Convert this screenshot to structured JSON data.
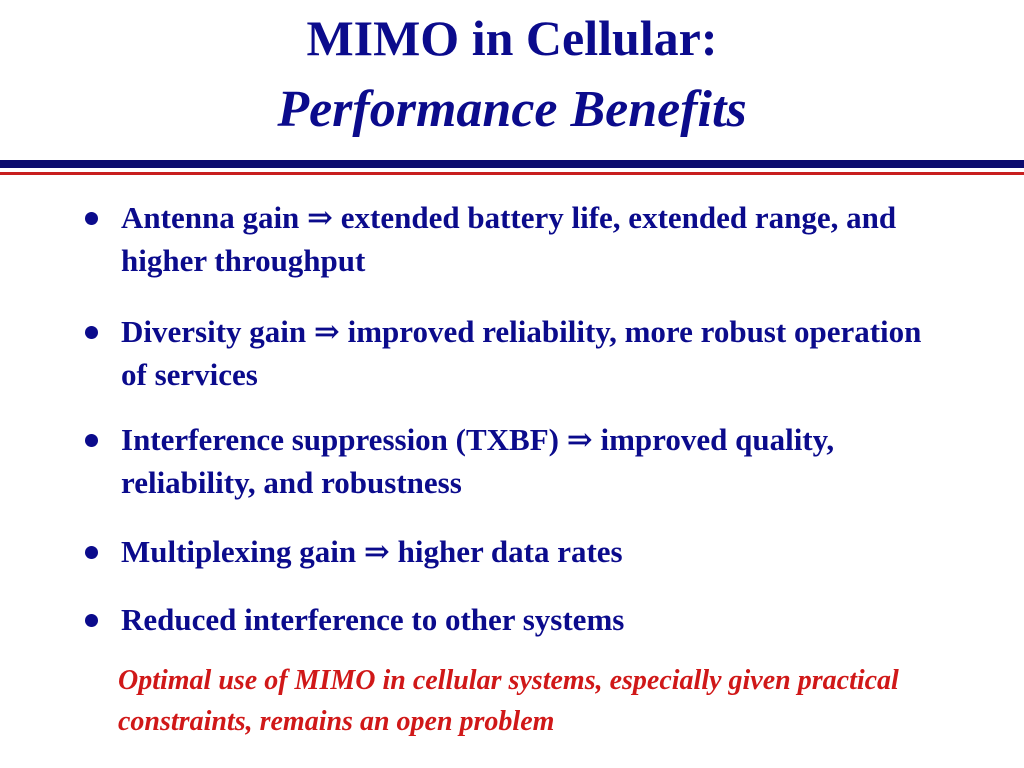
{
  "slide": {
    "title_line1": "MIMO in Cellular:",
    "title_line2": "Performance Benefits",
    "colors": {
      "title": "#0b0b8c",
      "body_text": "#0b0b8c",
      "note_text": "#d01818",
      "rule_blue": "#0b0b6e",
      "rule_red": "#c81e1e",
      "background": "#ffffff"
    },
    "bullets": [
      {
        "text": "Antenna gain ⇒ extended battery life, extended range, and higher throughput"
      },
      {
        "text": "Diversity gain ⇒ improved reliability, more robust operation of services"
      },
      {
        "text": "Interference suppression (TXBF) ⇒ improved quality, reliability, and robustness"
      },
      {
        "text": "Multiplexing gain ⇒ higher data rates"
      },
      {
        "text": "Reduced interference to other systems"
      }
    ],
    "note": "Optimal use of MIMO in cellular systems, especially given practical constraints, remains an open problem"
  }
}
